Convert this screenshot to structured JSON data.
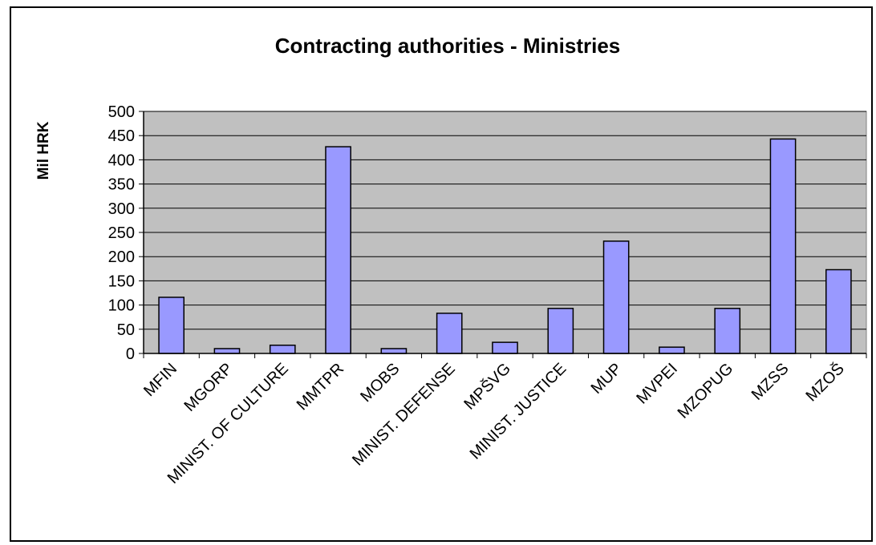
{
  "chart_data": {
    "type": "bar",
    "title": "Contracting authorities - Ministries",
    "ylabel": "Mil HRK",
    "xlabel": "",
    "ylim": [
      0,
      500
    ],
    "yticks": [
      0,
      50,
      100,
      150,
      200,
      250,
      300,
      350,
      400,
      450,
      500
    ],
    "grid": true,
    "categories": [
      "MFIN",
      "MGORP",
      "MINIST. OF CULTURE",
      "MMTPR",
      "MOBS",
      "MINIST. DEFENSE",
      "MPŠVG",
      "MINIST. JUSTICE",
      "MUP",
      "MVPEI",
      "MZOPUG",
      "MZSS",
      "MZOŠ"
    ],
    "values": [
      116,
      10,
      17,
      427,
      10,
      83,
      23,
      93,
      232,
      13,
      93,
      443,
      173
    ],
    "colors": {
      "bar": "#9999ff",
      "plot_background": "#c0c0c0",
      "frame": "#000000"
    }
  }
}
